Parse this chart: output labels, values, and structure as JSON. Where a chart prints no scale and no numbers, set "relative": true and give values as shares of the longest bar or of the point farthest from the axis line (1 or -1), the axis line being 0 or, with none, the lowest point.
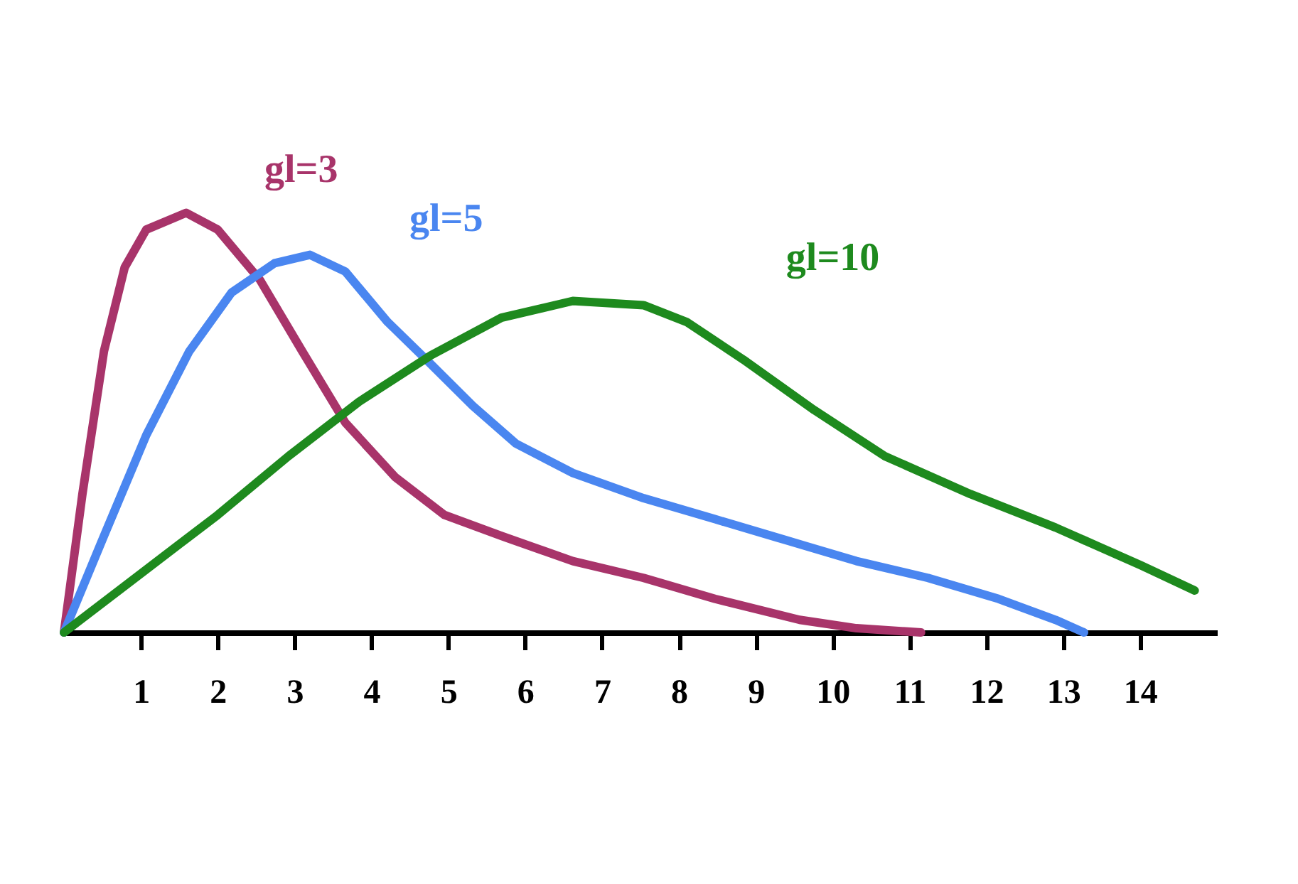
{
  "chart_data": {
    "type": "line",
    "relative": true,
    "xlim": [
      0,
      15
    ],
    "xticks": [
      1,
      2,
      3,
      4,
      5,
      6,
      7,
      8,
      9,
      10,
      11,
      12,
      13,
      14
    ],
    "legend": false,
    "grid": false,
    "marker": "none",
    "line_style": "solid",
    "series": [
      {
        "name": "gl=3",
        "color": "#a8346a",
        "x": [
          0,
          0.24,
          0.52,
          0.79,
          1.07,
          1.59,
          2.0,
          2.55,
          3.1,
          3.66,
          4.31,
          4.95,
          5.69,
          6.62,
          7.54,
          8.47,
          9.57,
          10.31,
          11.15
        ],
        "values": [
          0,
          0.33,
          0.67,
          0.87,
          0.96,
          1.0,
          0.96,
          0.84,
          0.67,
          0.5,
          0.37,
          0.28,
          0.23,
          0.17,
          0.13,
          0.08,
          0.03,
          0.01,
          0
        ]
      },
      {
        "name": "gl=5",
        "color": "#4a86f0",
        "x": [
          0,
          0.52,
          1.07,
          1.63,
          2.18,
          2.74,
          3.2,
          3.66,
          4.21,
          4.77,
          5.32,
          5.88,
          6.62,
          7.54,
          8.47,
          9.39,
          10.31,
          11.24,
          12.16,
          12.9,
          13.27
        ],
        "values": [
          0,
          0.23,
          0.47,
          0.67,
          0.81,
          0.88,
          0.9,
          0.86,
          0.74,
          0.64,
          0.54,
          0.45,
          0.38,
          0.32,
          0.27,
          0.22,
          0.17,
          0.13,
          0.08,
          0.03,
          0
        ]
      },
      {
        "name": "gl=10",
        "color": "#1e8a1e",
        "x": [
          0,
          1.07,
          2.0,
          2.92,
          3.84,
          4.77,
          5.69,
          6.62,
          7.54,
          8.1,
          8.84,
          9.76,
          10.68,
          11.79,
          12.9,
          14.01,
          14.71
        ],
        "values": [
          0,
          0.15,
          0.28,
          0.42,
          0.55,
          0.66,
          0.75,
          0.79,
          0.78,
          0.74,
          0.65,
          0.53,
          0.42,
          0.33,
          0.25,
          0.16,
          0.1
        ]
      }
    ]
  }
}
